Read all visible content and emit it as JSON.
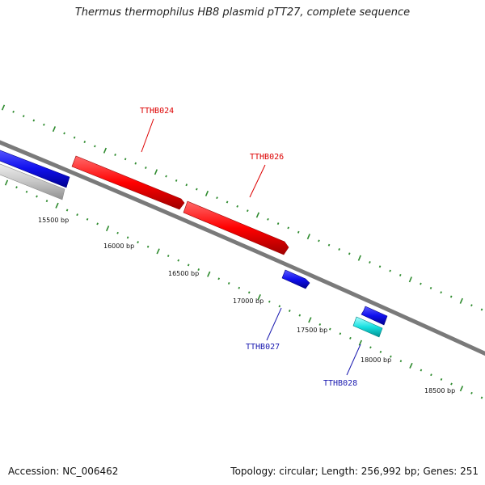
{
  "title": "Thermus thermophilus HB8 plasmid pTT27, complete sequence",
  "footer": {
    "accession": "Accession: NC_006462",
    "summary": "Topology: circular; Length: 256,992 bp; Genes: 251"
  },
  "colors": {
    "backbone": "#7a7a7a",
    "ticks": "#2e8b2e",
    "gene_red": "#ff0000",
    "gene_blue": "#1010ee",
    "gene_cyan": "#18e0e0",
    "gene_gray": "#c8c8c8",
    "label_red": "#dd0000",
    "label_blue": "#1a1ab0"
  },
  "bp_labels": [
    "15500 bp",
    "16000 bp",
    "16500 bp",
    "17000 bp",
    "17500 bp",
    "18000 bp",
    "18500 bp"
  ],
  "gene_labels": [
    {
      "name": "TTHB024",
      "color": "label_red"
    },
    {
      "name": "TTHB026",
      "color": "label_red"
    },
    {
      "name": "TTHB027",
      "color": "label_blue"
    },
    {
      "name": "TTHB028",
      "color": "label_blue"
    }
  ]
}
